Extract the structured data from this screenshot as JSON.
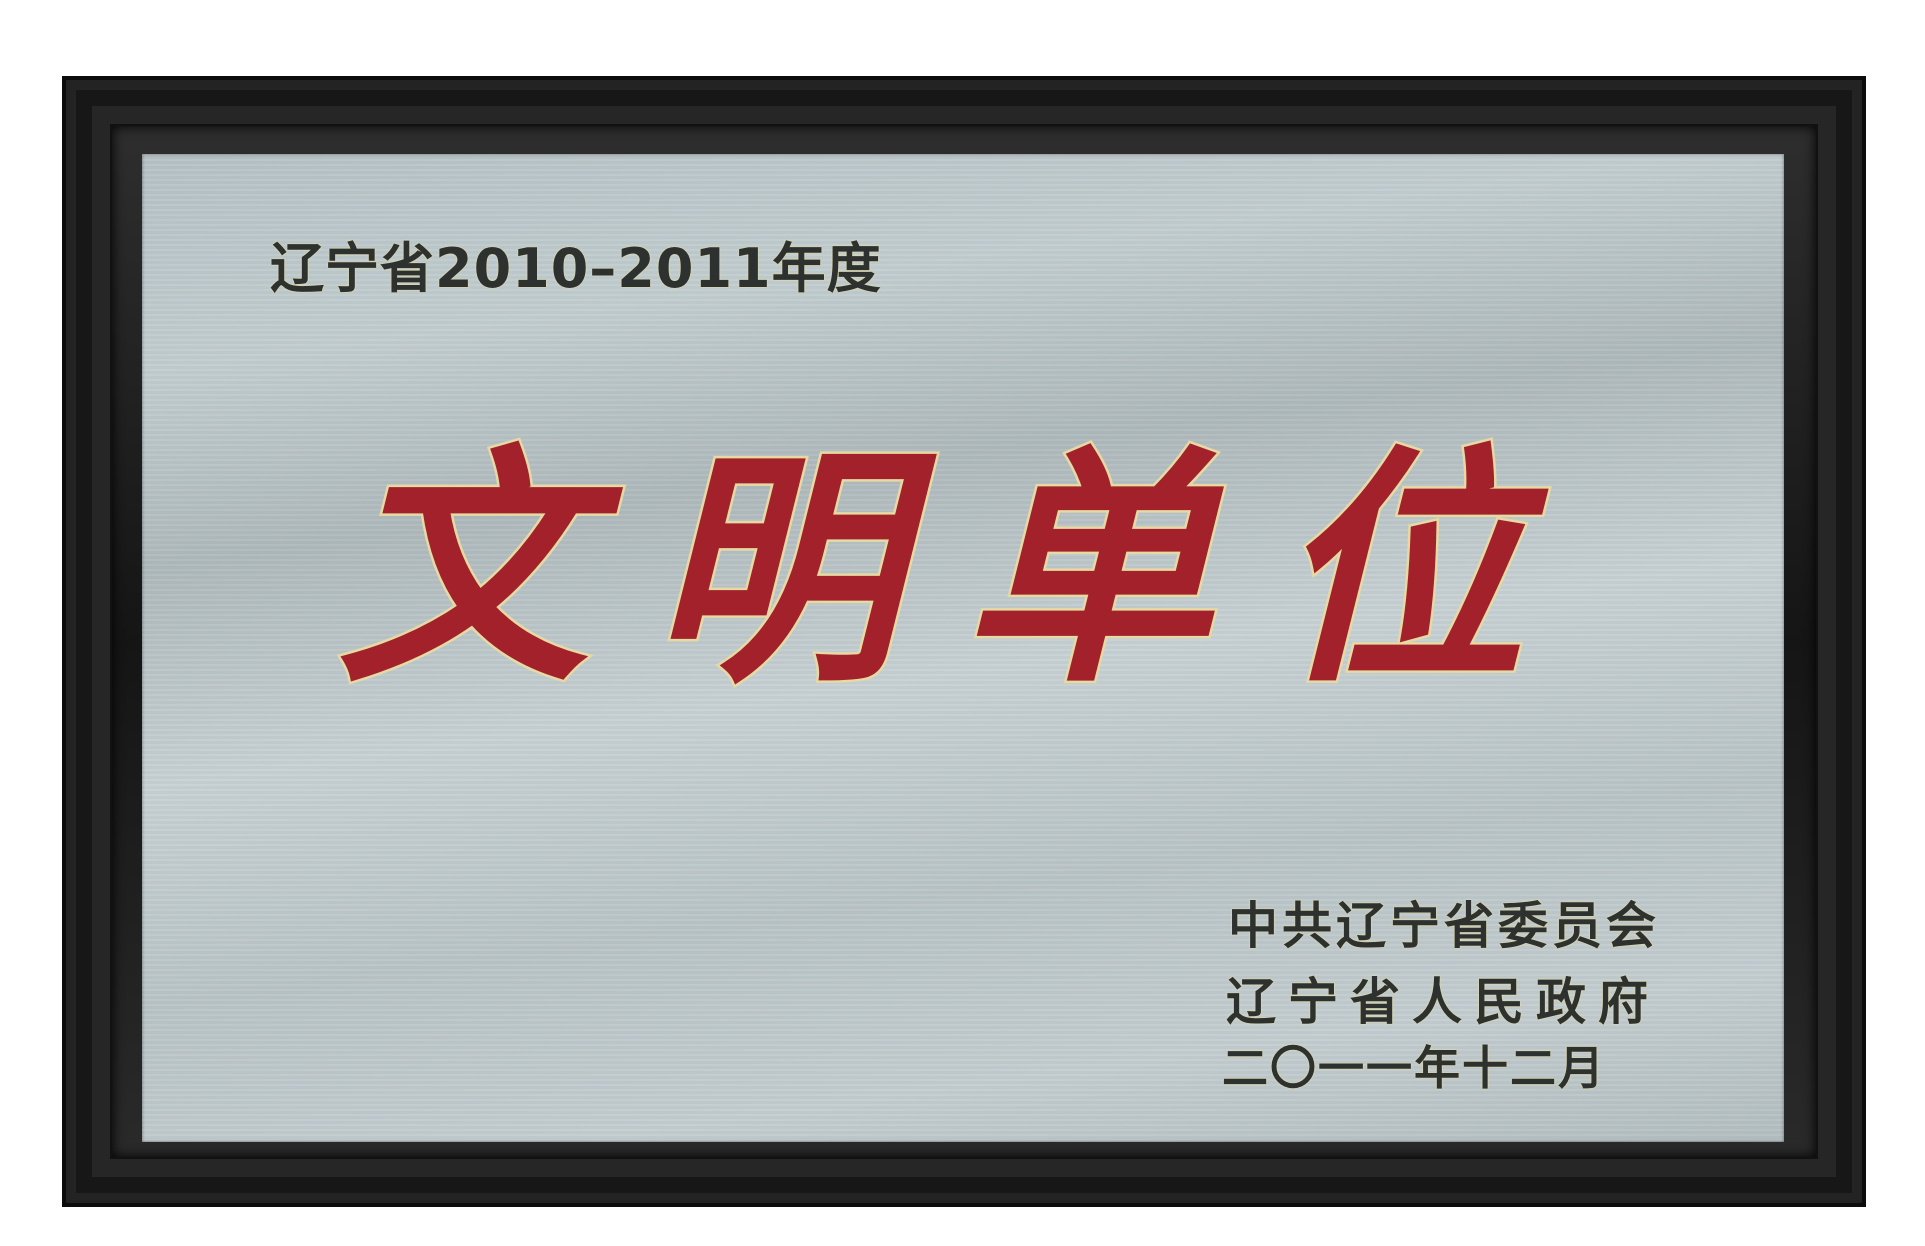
{
  "plaque": {
    "year_line": "辽宁省2010–2011年度",
    "title": "文明单位",
    "issuer_party": "中共辽宁省委员会",
    "issuer_government": "辽宁省人民政府",
    "date": "二〇一一年十二月"
  },
  "colors": {
    "frame": "#1b1b1b",
    "plate": "#bcc7ca",
    "title_red": "#a2212b",
    "gold_outline": "#e6d9a4",
    "text_dark": "#2d3230"
  }
}
